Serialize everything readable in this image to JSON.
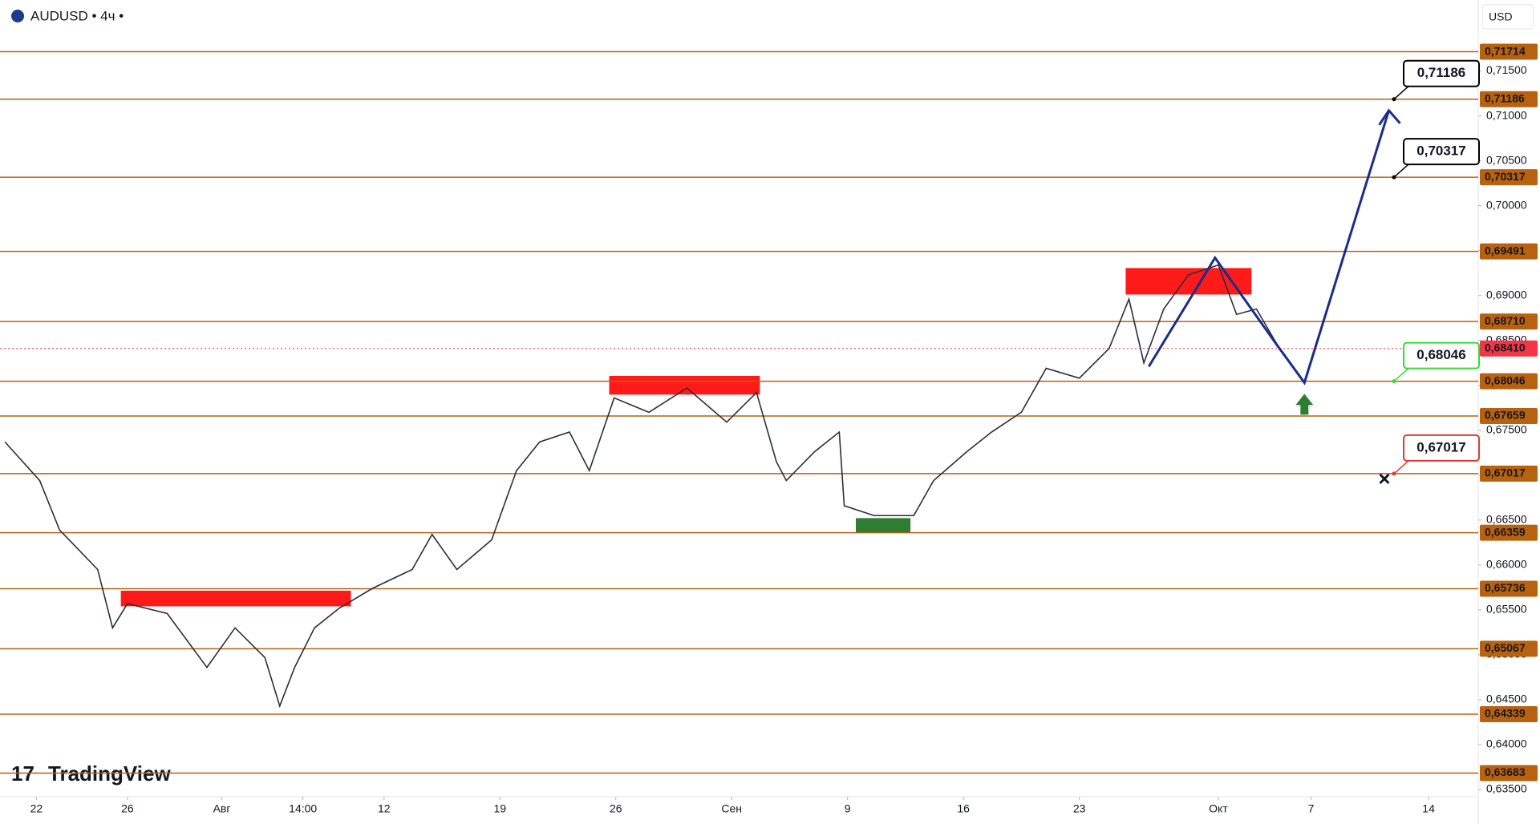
{
  "chart_data": {
    "type": "line",
    "title": "AUDUSD • 4ч •",
    "currency": "USD",
    "brand": "TradingView",
    "xlim": [
      -2.2,
      87.1
    ],
    "ylim": [
      0.6342,
      0.7229
    ],
    "xticks": [
      {
        "value": 0,
        "label": "22"
      },
      {
        "value": 5.5,
        "label": "26"
      },
      {
        "value": 11.2,
        "label": "Авг"
      },
      {
        "value": 16.1,
        "label": "14:00"
      },
      {
        "value": 21,
        "label": "12"
      },
      {
        "value": 28,
        "label": "19"
      },
      {
        "value": 35,
        "label": "26"
      },
      {
        "value": 42,
        "label": "Сен"
      },
      {
        "value": 49,
        "label": "9"
      },
      {
        "value": 56,
        "label": "16"
      },
      {
        "value": 63,
        "label": "23"
      },
      {
        "value": 71.4,
        "label": "Окт"
      },
      {
        "value": 77,
        "label": "7"
      },
      {
        "value": 84.1,
        "label": "14"
      }
    ],
    "yticks": [
      {
        "value": 0.635,
        "label": "0,63500"
      },
      {
        "value": 0.64,
        "label": "0,64000"
      },
      {
        "value": 0.645,
        "label": "0,64500"
      },
      {
        "value": 0.65,
        "label": "0,65000"
      },
      {
        "value": 0.655,
        "label": "0,65500"
      },
      {
        "value": 0.66,
        "label": "0,66000"
      },
      {
        "value": 0.665,
        "label": "0,66500"
      },
      {
        "value": 0.67,
        "label": "0,67000"
      },
      {
        "value": 0.675,
        "label": "0,67500"
      },
      {
        "value": 0.68,
        "label": "0,68000"
      },
      {
        "value": 0.685,
        "label": "0,68500"
      },
      {
        "value": 0.69,
        "label": "0,69000"
      },
      {
        "value": 0.695,
        "label": "0,69500"
      },
      {
        "value": 0.7,
        "label": "0,70000"
      },
      {
        "value": 0.705,
        "label": "0,70500"
      },
      {
        "value": 0.71,
        "label": "0,71000"
      },
      {
        "value": 0.715,
        "label": "0,71500"
      }
    ],
    "series": [
      {
        "name": "AUDUSD",
        "color": "#2a2e39",
        "x": [
          -1.9,
          0.2,
          1.4,
          3.7,
          4.6,
          5.5,
          7.9,
          10.3,
          12.0,
          13.8,
          14.7,
          15.6,
          16.8,
          18.3,
          20.3,
          22.7,
          23.9,
          25.4,
          27.5,
          29.0,
          30.4,
          32.2,
          33.4,
          34.9,
          37.0,
          39.3,
          41.7,
          43.5,
          44.7,
          45.3,
          47.0,
          48.5,
          48.8,
          50.6,
          53.0,
          54.2,
          56.2,
          57.7,
          59.5,
          61.0,
          63.0,
          64.8,
          66.0,
          66.9,
          68.1,
          69.6,
          71.4,
          72.5,
          73.7,
          74.9
        ],
        "values": [
          0.6737,
          0.6694,
          0.6639,
          0.6595,
          0.653,
          0.6557,
          0.6546,
          0.6486,
          0.653,
          0.6497,
          0.6443,
          0.6486,
          0.653,
          0.6552,
          0.6574,
          0.6595,
          0.6634,
          0.6595,
          0.6628,
          0.6705,
          0.6737,
          0.6748,
          0.6705,
          0.6786,
          0.677,
          0.6797,
          0.6759,
          0.6792,
          0.6715,
          0.6694,
          0.6726,
          0.6748,
          0.6666,
          0.6655,
          0.6655,
          0.6694,
          0.6726,
          0.6748,
          0.677,
          0.6819,
          0.6808,
          0.6841,
          0.6896,
          0.6825,
          0.6885,
          0.6923,
          0.6934,
          0.6879,
          0.6885,
          0.6847
        ]
      },
      {
        "name": "Projection",
        "color": "#1a2d8a",
        "x": [
          67.2,
          71.2,
          74.9,
          76.6,
          81.7
        ],
        "values": [
          0.6821,
          0.6942,
          0.6846,
          0.6803,
          0.7106
        ]
      }
    ],
    "current_price": {
      "value": 0.6841,
      "label": "0,68410",
      "color": "#f23645"
    },
    "levels": [
      {
        "value": 0.71714,
        "label": "0,71714"
      },
      {
        "value": 0.71186,
        "label": "0,71186"
      },
      {
        "value": 0.70317,
        "label": "0,70317"
      },
      {
        "value": 0.69491,
        "label": "0,69491"
      },
      {
        "value": 0.6871,
        "label": "0,68710"
      },
      {
        "value": 0.68046,
        "label": "0,68046"
      },
      {
        "value": 0.67659,
        "label": "0,67659"
      },
      {
        "value": 0.67017,
        "label": "0,67017"
      },
      {
        "value": 0.66359,
        "label": "0,66359"
      },
      {
        "value": 0.65736,
        "label": "0,65736"
      },
      {
        "value": 0.65067,
        "label": "0,65067"
      },
      {
        "value": 0.64339,
        "label": "0,64339"
      },
      {
        "value": 0.63683,
        "label": "0,63683"
      }
    ],
    "level_color": "#b8610f",
    "zones": [
      {
        "x": [
          34.6,
          43.7
        ],
        "range": [
          0.67897,
          0.68105
        ],
        "color": "#ff1a1a"
      },
      {
        "x": [
          65.8,
          73.4
        ],
        "range": [
          0.69011,
          0.69306
        ],
        "color": "#ff1a1a"
      },
      {
        "x": [
          5.1,
          19.0
        ],
        "range": [
          0.6554,
          0.65714
        ],
        "color": "#ff1a1a"
      },
      {
        "x": [
          49.5,
          52.8
        ],
        "range": [
          0.66358,
          0.66522
        ],
        "color": "#2e7d32"
      }
    ],
    "annotations": [
      {
        "value": 0.71186,
        "label": "0,71186",
        "color": "#000000"
      },
      {
        "value": 0.70317,
        "label": "0,70317",
        "color": "#000000"
      },
      {
        "value": 0.68046,
        "label": "0,68046",
        "color": "#33dd33"
      },
      {
        "value": 0.67017,
        "label": "0,67017",
        "color": "#e53935"
      }
    ]
  }
}
